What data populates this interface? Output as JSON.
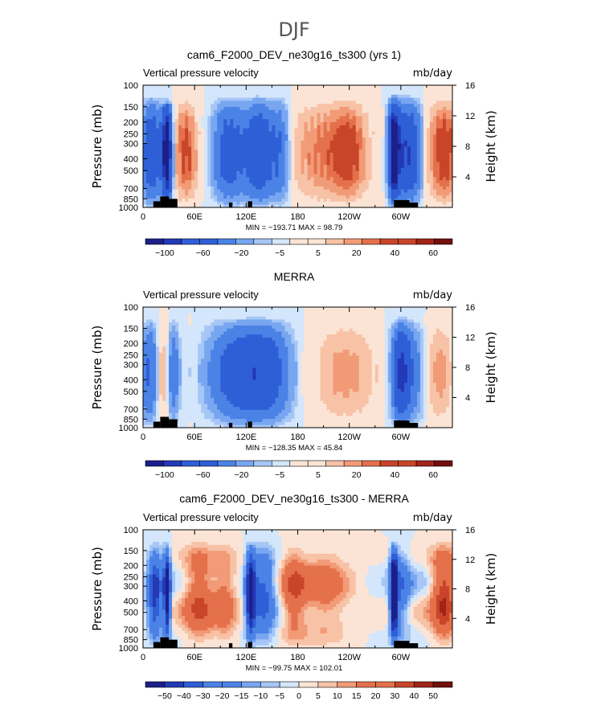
{
  "page_title": "DJF",
  "colors": {
    "palette": [
      "#1c1f8a",
      "#2339b5",
      "#2f5fd7",
      "#4a82e6",
      "#78a6f0",
      "#a6c6f6",
      "#d3e6fb",
      "#fbe4d5",
      "#f7c2a6",
      "#f29b77",
      "#e4714b",
      "#c94529",
      "#a02417",
      "#730f0f"
    ]
  },
  "chart_data": [
    {
      "type": "heatmap",
      "title": "cam6_F2000_DEV_ne30g16_ts300 (yrs 1)",
      "left_label": "Vertical pressure velocity",
      "right_label": "mb/day",
      "ylabel": "Pressure (mb)",
      "ylabel_right": "Height (km)",
      "x_ticks": [
        "0",
        "60E",
        "120E",
        "180",
        "120W",
        "60W"
      ],
      "x_range": [
        0,
        360
      ],
      "y_ticks": [
        "100",
        "150",
        "200",
        "250",
        "300",
        "400",
        "500",
        "700",
        "850",
        "1000"
      ],
      "y_range_mb": [
        1000,
        100
      ],
      "y_right_ticks": [
        "16",
        "12",
        "8",
        "4"
      ],
      "minmax": "MIN = −193.71   MAX =  98.79",
      "min": -193.71,
      "max": 98.79,
      "levels": [
        -100,
        -80,
        -60,
        -40,
        -20,
        -10,
        -5,
        0,
        5,
        10,
        20,
        30,
        40,
        50,
        60,
        70
      ],
      "colorbar_labels": [
        "−100",
        "−60",
        "−20",
        "−5",
        "5",
        "20",
        "40",
        "60"
      ]
    },
    {
      "type": "heatmap",
      "title": "MERRA",
      "left_label": "Vertical pressure velocity",
      "right_label": "mb/day",
      "ylabel": "Pressure (mb)",
      "ylabel_right": "Height (km)",
      "x_ticks": [
        "0",
        "60E",
        "120E",
        "180",
        "120W",
        "60W"
      ],
      "x_range": [
        0,
        360
      ],
      "y_ticks": [
        "100",
        "150",
        "200",
        "250",
        "300",
        "400",
        "500",
        "700",
        "850",
        "1000"
      ],
      "y_range_mb": [
        1000,
        100
      ],
      "y_right_ticks": [
        "16",
        "12",
        "8",
        "4"
      ],
      "minmax": "MIN = −128.35   MAX =  45.84",
      "min": -128.35,
      "max": 45.84,
      "levels": [
        -100,
        -80,
        -60,
        -40,
        -20,
        -10,
        -5,
        0,
        5,
        10,
        20,
        30,
        40,
        50,
        60,
        70
      ],
      "colorbar_labels": [
        "−100",
        "−60",
        "−20",
        "−5",
        "5",
        "20",
        "40",
        "60"
      ]
    },
    {
      "type": "heatmap",
      "title": "cam6_F2000_DEV_ne30g16_ts300 - MERRA",
      "left_label": "Vertical pressure velocity",
      "right_label": "mb/day",
      "ylabel": "Pressure (mb)",
      "ylabel_right": "Height (km)",
      "x_ticks": [
        "0",
        "60E",
        "120E",
        "180",
        "120W",
        "60W"
      ],
      "x_range": [
        0,
        360
      ],
      "y_ticks": [
        "100",
        "150",
        "200",
        "250",
        "300",
        "400",
        "500",
        "700",
        "850",
        "1000"
      ],
      "y_range_mb": [
        1000,
        100
      ],
      "y_right_ticks": [
        "16",
        "12",
        "8",
        "4"
      ],
      "minmax": "MIN = −99.75   MAX = 102.01",
      "min": -99.75,
      "max": 102.01,
      "levels": [
        -50,
        -40,
        -30,
        -20,
        -15,
        -10,
        -5,
        0,
        5,
        10,
        15,
        20,
        30,
        40,
        50
      ],
      "colorbar_labels": [
        "−50",
        "−40",
        "−30",
        "−20",
        "−15",
        "−10",
        "−5",
        "0",
        "5",
        "10",
        "15",
        "20",
        "30",
        "40",
        "50"
      ]
    }
  ]
}
